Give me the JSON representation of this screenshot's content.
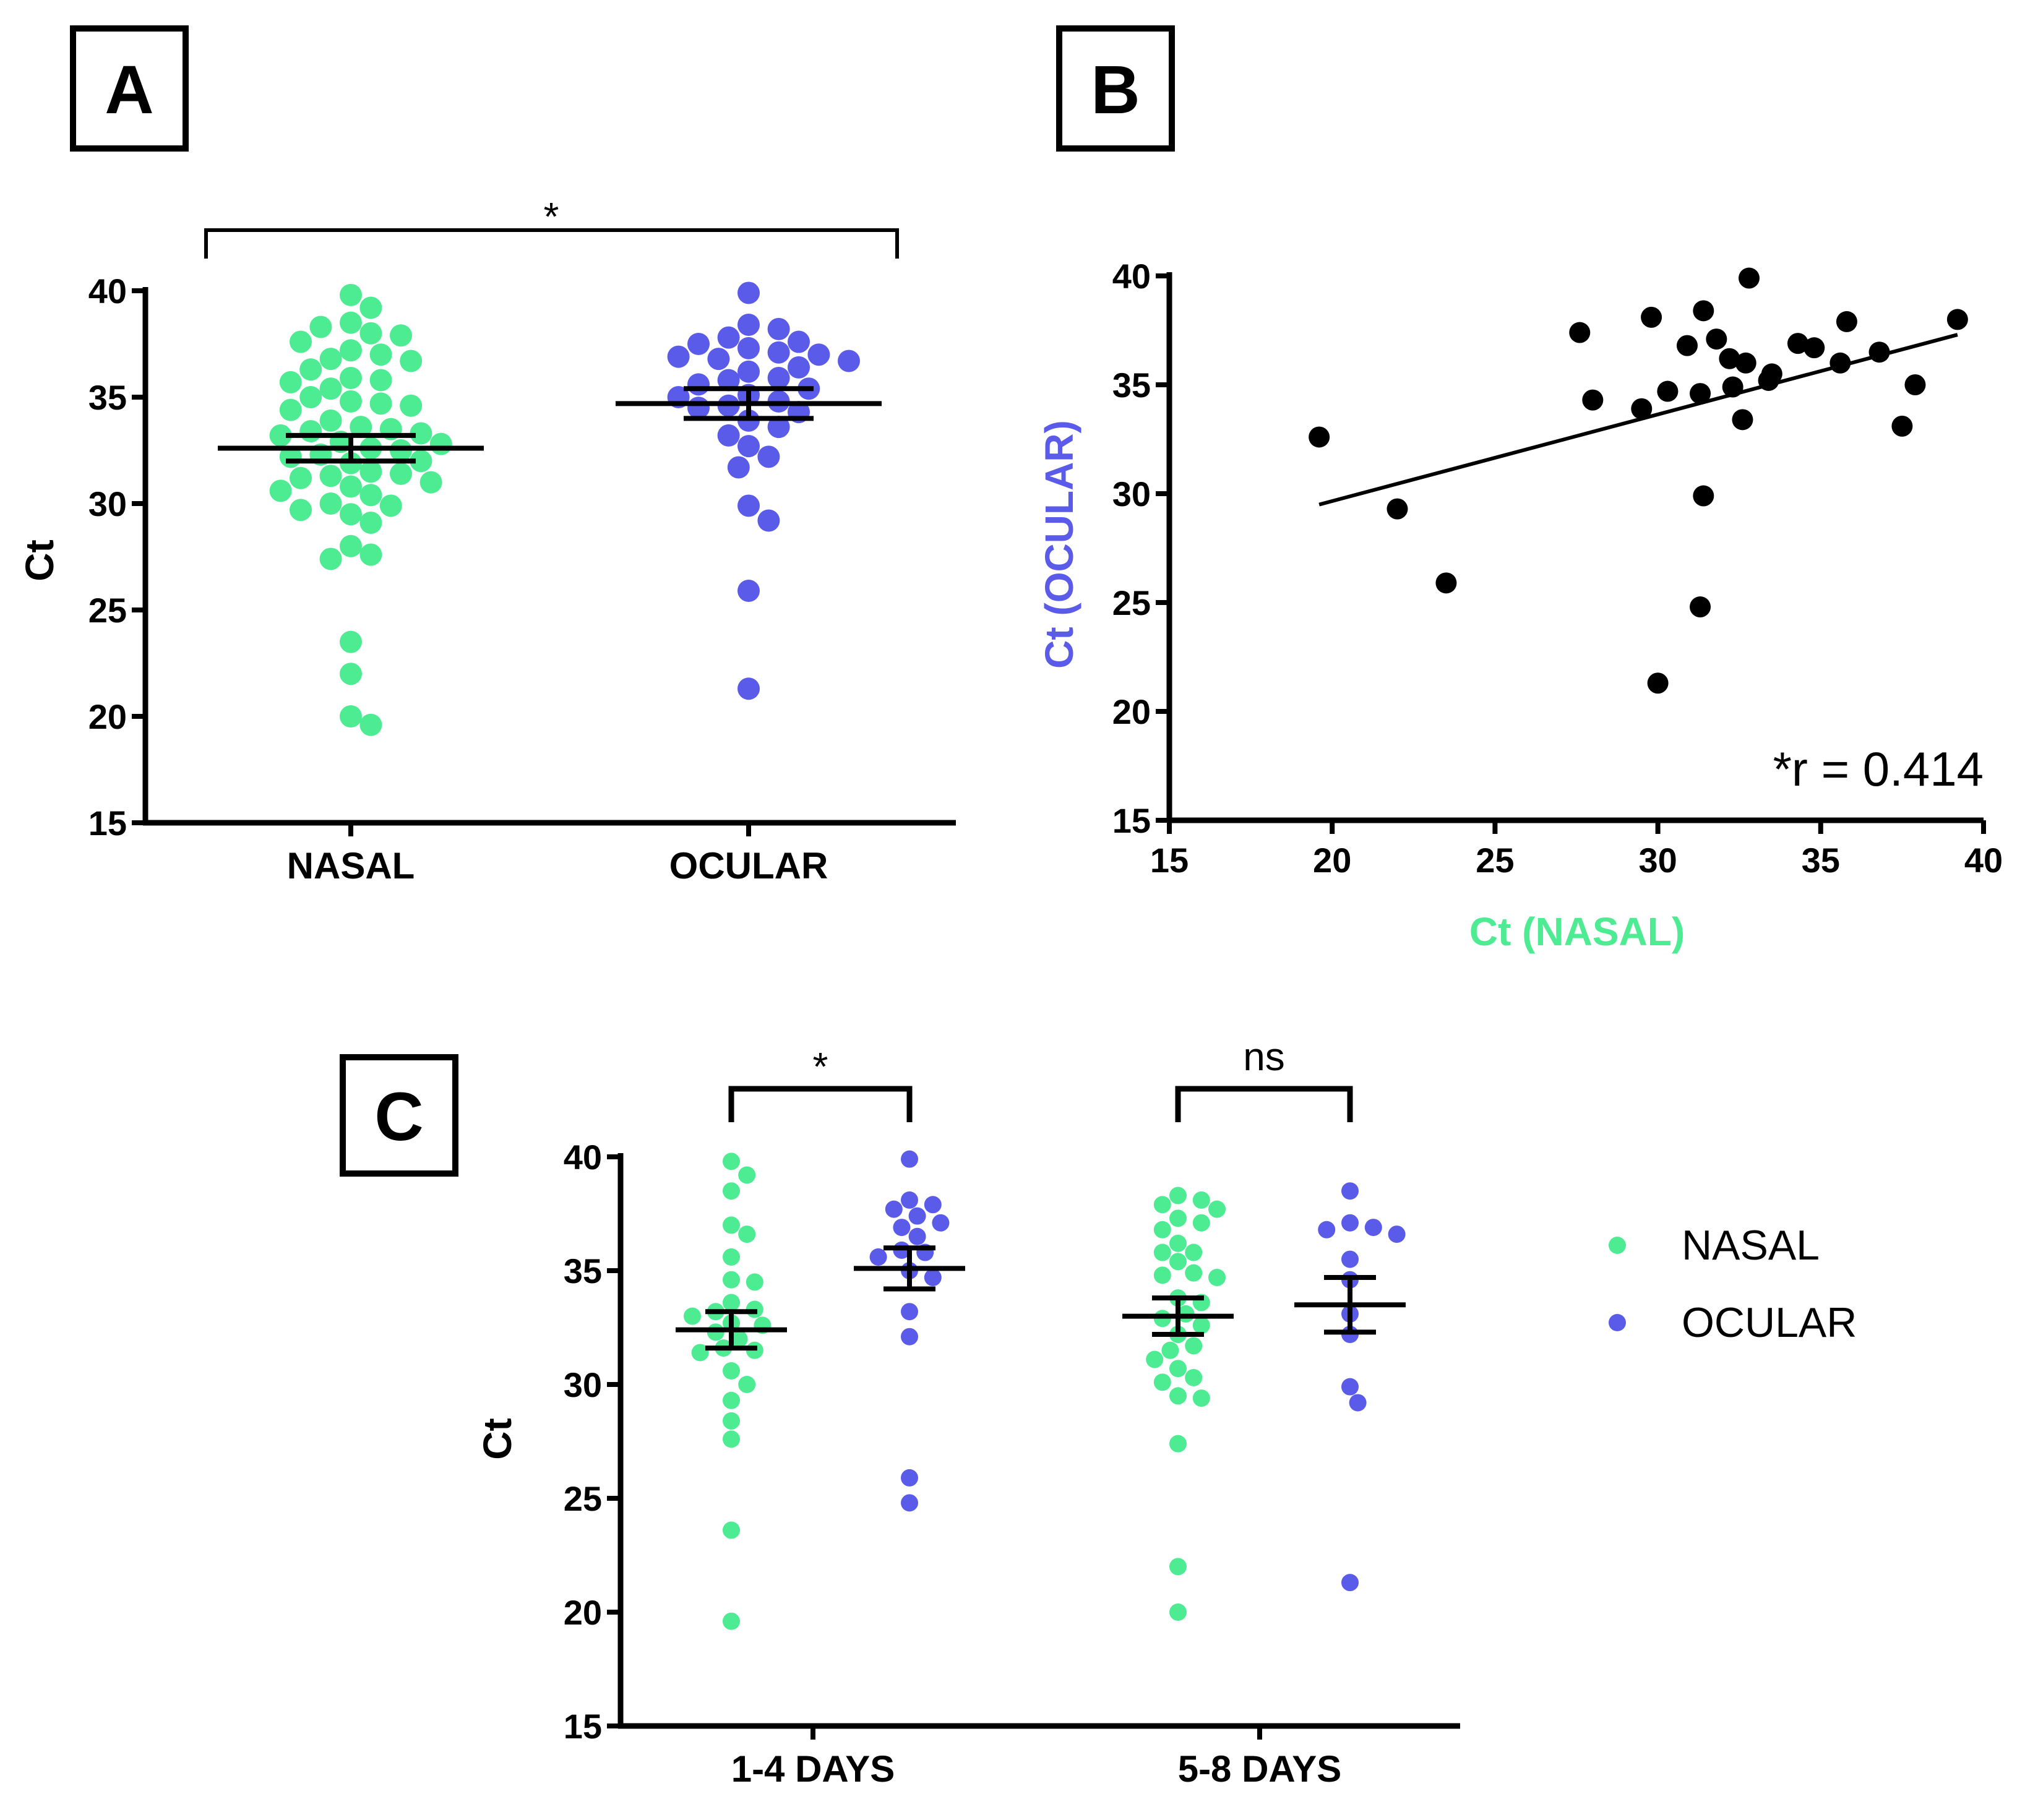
{
  "colors": {
    "nasal": "#4deb92",
    "ocular": "#5b5bea",
    "scatter": "#000000"
  },
  "panels": {
    "a": "A",
    "b": "B",
    "c": "C"
  },
  "chart_data": [
    {
      "panel": "A",
      "type": "scatter",
      "ylabel": "Ct",
      "ylim": [
        15,
        40
      ],
      "yticks": [
        15,
        20,
        25,
        30,
        35,
        40
      ],
      "categories": [
        "NASAL",
        "OCULAR"
      ],
      "series": [
        {
          "name": "NASAL",
          "mean": 32.6,
          "sem": 0.6,
          "values": [
            39.8,
            39.2,
            38.5,
            38.3,
            38.0,
            37.9,
            37.6,
            37.2,
            37.0,
            36.8,
            36.7,
            36.3,
            35.9,
            35.8,
            35.7,
            35.4,
            35.0,
            34.8,
            34.7,
            34.6,
            34.4,
            33.9,
            33.6,
            33.5,
            33.4,
            33.3,
            33.2,
            32.9,
            32.8,
            32.6,
            32.5,
            32.3,
            32.2,
            32.0,
            31.9,
            31.5,
            31.4,
            31.3,
            31.2,
            31.0,
            30.8,
            30.6,
            30.4,
            30.0,
            29.9,
            29.7,
            29.5,
            29.1,
            28.0,
            27.6,
            27.4,
            23.5,
            22.0,
            20.0,
            19.6
          ]
        },
        {
          "name": "OCULAR",
          "mean": 34.7,
          "sem": 0.7,
          "values": [
            39.9,
            38.4,
            38.2,
            37.8,
            37.6,
            37.5,
            37.3,
            37.1,
            37.0,
            36.9,
            36.8,
            36.7,
            36.4,
            36.2,
            35.9,
            35.8,
            35.6,
            35.4,
            35.1,
            35.0,
            34.8,
            34.6,
            34.5,
            34.3,
            33.9,
            33.6,
            33.2,
            32.7,
            32.2,
            31.7,
            29.9,
            29.2,
            25.9,
            21.3
          ]
        }
      ],
      "annotations": [
        {
          "text": "*",
          "between": [
            "NASAL",
            "OCULAR"
          ]
        }
      ]
    },
    {
      "panel": "B",
      "type": "scatter",
      "xlabel": "Ct (NASAL)",
      "ylabel": "Ct (OCULAR)",
      "xlim": [
        15,
        40
      ],
      "ylim": [
        15,
        40
      ],
      "xticks": [
        15,
        20,
        25,
        30,
        35,
        40
      ],
      "yticks": [
        15,
        20,
        25,
        30,
        35,
        40
      ],
      "annotation": "*r = 0.414",
      "regression": {
        "x": [
          19.6,
          39.2
        ],
        "y": [
          29.5,
          37.3
        ]
      },
      "points": [
        {
          "x": 19.6,
          "y": 32.6
        },
        {
          "x": 22.0,
          "y": 29.3
        },
        {
          "x": 23.5,
          "y": 25.9
        },
        {
          "x": 27.6,
          "y": 37.4
        },
        {
          "x": 28.0,
          "y": 34.3
        },
        {
          "x": 29.5,
          "y": 33.9
        },
        {
          "x": 29.8,
          "y": 38.1
        },
        {
          "x": 30.0,
          "y": 21.3
        },
        {
          "x": 30.3,
          "y": 34.7
        },
        {
          "x": 30.9,
          "y": 36.8
        },
        {
          "x": 31.3,
          "y": 34.6
        },
        {
          "x": 31.4,
          "y": 38.4
        },
        {
          "x": 31.4,
          "y": 29.9
        },
        {
          "x": 31.3,
          "y": 24.8
        },
        {
          "x": 31.8,
          "y": 37.1
        },
        {
          "x": 32.2,
          "y": 36.2
        },
        {
          "x": 32.3,
          "y": 34.9
        },
        {
          "x": 32.6,
          "y": 33.4
        },
        {
          "x": 32.7,
          "y": 36.0
        },
        {
          "x": 32.8,
          "y": 39.9
        },
        {
          "x": 33.4,
          "y": 35.2
        },
        {
          "x": 33.5,
          "y": 35.5
        },
        {
          "x": 34.3,
          "y": 36.9
        },
        {
          "x": 34.8,
          "y": 36.7
        },
        {
          "x": 35.6,
          "y": 36.0
        },
        {
          "x": 35.8,
          "y": 37.9
        },
        {
          "x": 36.8,
          "y": 36.5
        },
        {
          "x": 37.5,
          "y": 33.1
        },
        {
          "x": 37.9,
          "y": 35.0
        },
        {
          "x": 39.2,
          "y": 38.0
        }
      ]
    },
    {
      "panel": "C",
      "type": "scatter",
      "ylabel": "Ct",
      "ylim": [
        15,
        40
      ],
      "yticks": [
        15,
        20,
        25,
        30,
        35,
        40
      ],
      "categories": [
        "1-4 DAYS",
        "5-8 DAYS"
      ],
      "legend": {
        "position": "right",
        "entries": [
          "NASAL",
          "OCULAR"
        ]
      },
      "groups": [
        {
          "category": "1-4 DAYS",
          "series": "NASAL",
          "mean": 32.4,
          "sem": 0.8,
          "values": [
            39.8,
            39.2,
            38.5,
            37.0,
            36.6,
            35.6,
            34.6,
            34.5,
            33.6,
            33.3,
            33.2,
            33.0,
            32.7,
            32.6,
            32.3,
            32.0,
            31.6,
            31.5,
            31.4,
            30.6,
            30.0,
            29.3,
            28.4,
            27.6,
            23.6,
            19.6
          ]
        },
        {
          "category": "1-4 DAYS",
          "series": "OCULAR",
          "mean": 35.1,
          "sem": 0.9,
          "values": [
            39.9,
            38.1,
            37.9,
            37.7,
            37.4,
            37.1,
            36.9,
            36.5,
            35.9,
            35.8,
            35.6,
            35.0,
            34.7,
            33.2,
            32.1,
            25.9,
            24.8
          ]
        },
        {
          "category": "5-8 DAYS",
          "series": "NASAL",
          "mean": 33.0,
          "sem": 0.8,
          "values": [
            38.3,
            38.1,
            37.9,
            37.7,
            37.3,
            37.1,
            36.8,
            36.2,
            35.8,
            35.8,
            35.4,
            34.9,
            34.8,
            34.7,
            33.8,
            33.6,
            33.1,
            32.9,
            32.6,
            32.2,
            31.7,
            31.5,
            31.1,
            30.7,
            30.3,
            30.1,
            29.5,
            29.4,
            27.4,
            22.0,
            20.0
          ]
        },
        {
          "category": "5-8 DAYS",
          "series": "OCULAR",
          "mean": 33.5,
          "sem": 1.2,
          "values": [
            38.5,
            37.1,
            36.9,
            36.8,
            36.6,
            35.5,
            34.6,
            33.1,
            32.2,
            29.9,
            29.2,
            21.3
          ]
        }
      ],
      "annotations": [
        {
          "text": "*",
          "category": "1-4 DAYS"
        },
        {
          "text": "ns",
          "category": "5-8 DAYS"
        }
      ]
    }
  ]
}
